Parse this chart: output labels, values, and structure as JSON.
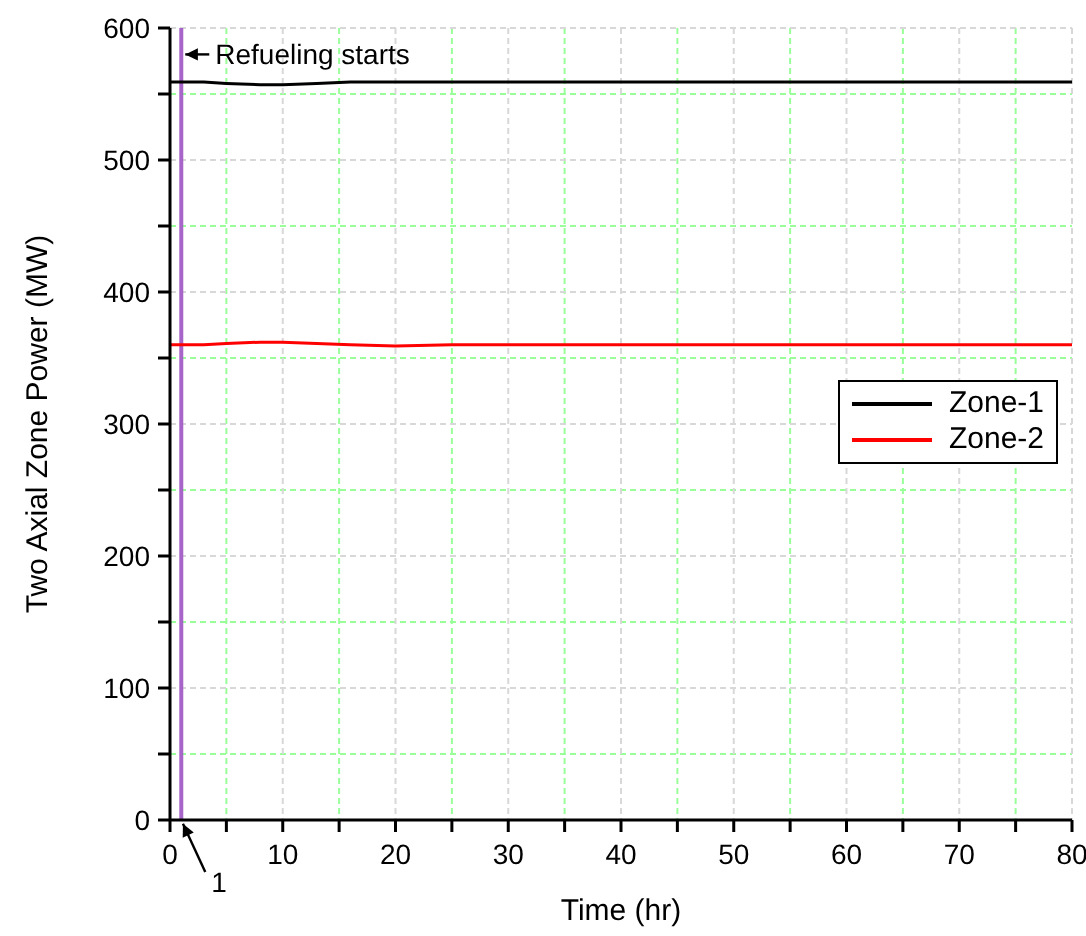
{
  "chart_data": {
    "type": "line",
    "xlabel": "Time (hr)",
    "ylabel": "Two Axial Zone Power (MW)",
    "xlim": [
      0,
      80
    ],
    "ylim": [
      0,
      600
    ],
    "xticks": [
      0,
      {
        "value": 5,
        "label": null
      },
      10,
      {
        "value": 15,
        "label": null
      },
      20,
      {
        "value": 25,
        "label": null
      },
      30,
      {
        "value": 35,
        "label": null
      },
      40,
      {
        "value": 45,
        "label": null
      },
      50,
      {
        "value": 55,
        "label": null
      },
      60,
      {
        "value": 65,
        "label": null
      },
      70,
      {
        "value": 75,
        "label": null
      },
      80
    ],
    "yticks": [
      0,
      {
        "value": 50,
        "label": null
      },
      100,
      {
        "value": 150,
        "label": null
      },
      200,
      {
        "value": 250,
        "label": null
      },
      300,
      {
        "value": 350,
        "label": null
      },
      400,
      {
        "value": 450,
        "label": null
      },
      500,
      {
        "value": 550,
        "label": null
      },
      600
    ],
    "grid": true,
    "legend": "right",
    "line_style": "solid",
    "marker": "none",
    "x": [
      0,
      1,
      3,
      5,
      8,
      10,
      13,
      16,
      20,
      25,
      30,
      40,
      50,
      60,
      70,
      80
    ],
    "series": [
      {
        "name": "Zone-1",
        "color": "#000000",
        "values": [
          559,
          559,
          559,
          558,
          557,
          557,
          558,
          559,
          559,
          559,
          559,
          559,
          559,
          559,
          559,
          559
        ]
      },
      {
        "name": "Zone-2",
        "color": "#ff0000",
        "values": [
          360,
          360,
          360,
          361,
          362,
          362,
          361,
          360,
          359,
          360,
          360,
          360,
          360,
          360,
          360,
          360
        ]
      }
    ],
    "ref_lines": [
      {
        "axis": "x",
        "value": 1,
        "color": "#a865c9"
      }
    ],
    "annotations": [
      {
        "text": "Refueling starts",
        "x": 1,
        "y": 580
      },
      {
        "text": "1",
        "x": 1,
        "y": 0
      }
    ]
  }
}
